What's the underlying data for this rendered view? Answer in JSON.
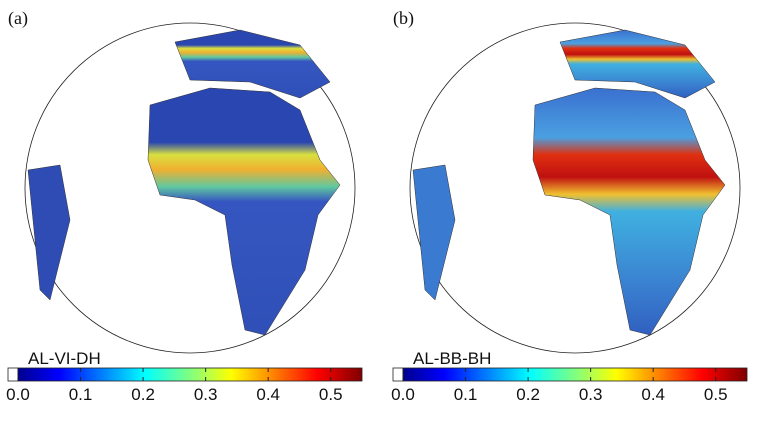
{
  "panels": [
    {
      "label": "(a)",
      "colorbar": {
        "title": "AL-VI-DH",
        "lim": [
          0,
          0.55
        ],
        "ticks": [
          {
            "value": 0,
            "label": "0.0"
          },
          0.1,
          0.2,
          0.3,
          0.4,
          0.5
        ]
      }
    },
    {
      "label": "(b)",
      "colorbar": {
        "title": "AL-BB-BH",
        "lim": [
          0,
          0.55
        ],
        "ticks": [
          {
            "value": 0,
            "label": "0.0"
          },
          0.1,
          0.2,
          0.3,
          0.4,
          0.5
        ]
      }
    }
  ]
}
